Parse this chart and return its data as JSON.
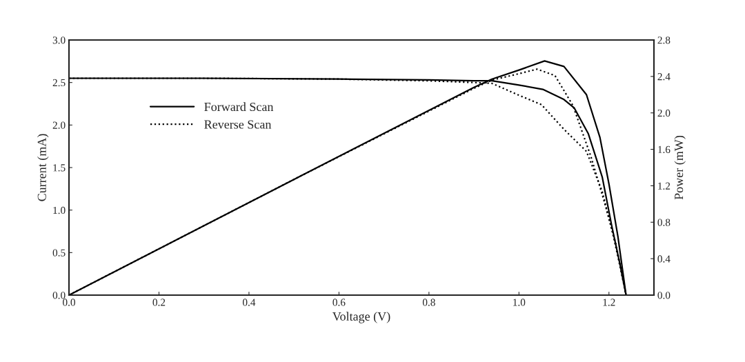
{
  "chart_data": {
    "type": "line",
    "xlabel": "Voltage (V)",
    "ylabel": "Current (mA)",
    "y2label": "Power (mW)",
    "xlim": [
      0,
      1.3
    ],
    "xticks": [
      {
        "value": 0,
        "label": "0.0"
      },
      0.2,
      0.4,
      0.6,
      0.8,
      {
        "value": 1,
        "label": "1.0"
      },
      1.2
    ],
    "ylim": [
      0,
      3
    ],
    "yticks": [
      {
        "value": 0,
        "label": "0.0"
      },
      0.5,
      {
        "value": 1,
        "label": "1.0"
      },
      1.5,
      {
        "value": 2,
        "label": "2.0"
      },
      2.5,
      {
        "value": 3,
        "label": "3.0"
      }
    ],
    "y2lim": [
      0,
      2.8
    ],
    "y2ticks": [
      {
        "value": 0,
        "label": "0.0"
      },
      0.4,
      0.8,
      1.2,
      1.6,
      {
        "value": 2,
        "label": "2.0"
      },
      2.4,
      2.8
    ],
    "legend": "top left",
    "grid": false,
    "series": [
      {
        "name": "Forward Scan",
        "color": "#000000",
        "line_style": "solid",
        "x": [
          0,
          0.3,
          0.6,
          0.8,
          0.9,
          0.94,
          1.0,
          1.053,
          1.1,
          1.123,
          1.154,
          1.185,
          1.206,
          1.225,
          1.238
        ],
        "values": [
          2.55,
          2.55,
          2.54,
          2.53,
          2.52,
          2.52,
          2.47,
          2.42,
          2.3,
          2.2,
          1.9,
          1.39,
          0.82,
          0.35,
          0
        ]
      },
      {
        "name": "Reverse Scan",
        "color": "#000000",
        "line_style": "dotted",
        "x": [
          0,
          0.3,
          0.6,
          0.8,
          0.9,
          0.94,
          1.0,
          1.05,
          1.1,
          1.15,
          1.185,
          1.21,
          1.225,
          1.238
        ],
        "values": [
          2.55,
          2.55,
          2.54,
          2.52,
          2.5,
          2.49,
          2.35,
          2.24,
          1.95,
          1.69,
          1.22,
          0.69,
          0.33,
          0
        ]
      },
      {
        "axis": "y2",
        "color": "#000000",
        "line_style": "solid",
        "x": [
          0,
          0.5,
          0.9,
          0.94,
          1.0,
          1.057,
          1.1,
          1.15,
          1.18,
          1.2,
          1.22,
          1.238
        ],
        "values": [
          0,
          1.27,
          2.28,
          2.37,
          2.47,
          2.57,
          2.51,
          2.2,
          1.73,
          1.22,
          0.64,
          0
        ]
      },
      {
        "axis": "y2",
        "color": "#000000",
        "line_style": "dotted",
        "x": [
          0,
          0.5,
          0.9,
          0.94,
          1.0,
          1.04,
          1.08,
          1.12,
          1.16,
          1.19,
          1.215,
          1.238
        ],
        "values": [
          0,
          1.27,
          2.27,
          2.36,
          2.43,
          2.48,
          2.41,
          2.08,
          1.52,
          1.02,
          0.57,
          0
        ]
      }
    ]
  }
}
